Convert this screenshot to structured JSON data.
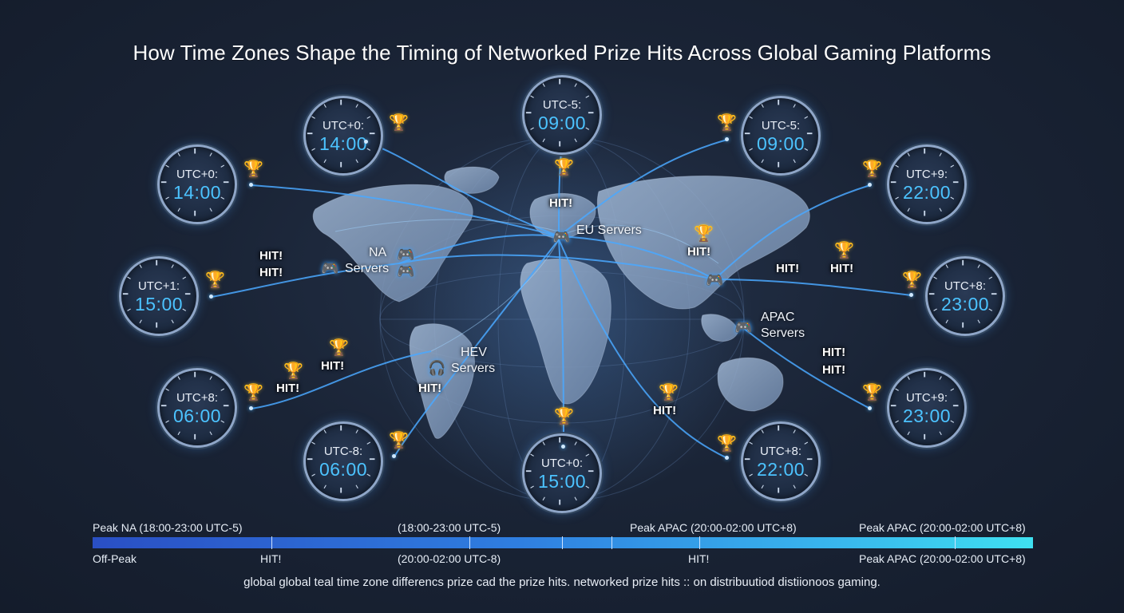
{
  "title": "How Time Zones Shape the Timing of Networked Prize Hits Across Global Gaming Platforms",
  "clocks": [
    {
      "zone": "UTC+0:",
      "time": "14:00"
    },
    {
      "zone": "UTC+0:",
      "time": "14:00"
    },
    {
      "zone": "UTC-5:",
      "time": "09:00"
    },
    {
      "zone": "UTC-5:",
      "time": "09:00"
    },
    {
      "zone": "UTC+9:",
      "time": "22:00"
    },
    {
      "zone": "UTC+1:",
      "time": "15:00"
    },
    {
      "zone": "UTC+8:",
      "time": "23:00"
    },
    {
      "zone": "UTC+8:",
      "time": "06:00"
    },
    {
      "zone": "UTC+9:",
      "time": "23:00"
    },
    {
      "zone": "UTC-8:",
      "time": "06:00"
    },
    {
      "zone": "UTC+0:",
      "time": "15:00"
    },
    {
      "zone": "UTC+8:",
      "time": "22:00"
    }
  ],
  "hit_label": "HIT!",
  "servers": {
    "na": [
      "NA",
      "Servers"
    ],
    "eu": "EU Servers",
    "apac": [
      "APAC",
      "Servers"
    ],
    "hev": [
      "HEV",
      "Servers"
    ]
  },
  "timeline": {
    "top_labels": [
      "Peak NA (18:00-23:00 UTC-5)",
      "(18:00-23:00 UTC-5)",
      "Peak APAC (20:00-02:00 UTC+8)",
      "Peak APAC (20:00-02:00 UTC+8)"
    ],
    "bottom_labels": [
      "Off-Peak",
      "HIT!",
      "(20:00-02:00 UTC-8)",
      "HIT!",
      "Peak APAC (20:00-02:00 UTC+8)"
    ],
    "colors": [
      "#2a4fc4",
      "#3fe0f0"
    ]
  },
  "caption": "global global teal time zone differencs prize cad the prize hits.  networked prize hits :: on distribuutiod distiionoos gaming.",
  "colors": {
    "accent": "#4cc3ff",
    "trophy": "#f4c233",
    "background": "#1a2436"
  }
}
